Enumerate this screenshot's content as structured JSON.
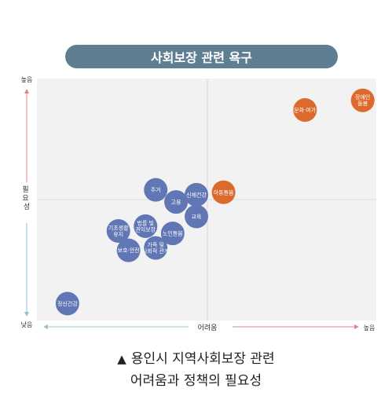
{
  "header": {
    "title": "사회보장 관련 욕구"
  },
  "caption": {
    "marker": "▲",
    "line1": "용인시 지역사회보장 관련",
    "line2": "어려움과 정책의 필요성"
  },
  "colors": {
    "plot_bg": "#f2f2f2",
    "blue_bubble": "#6176b4",
    "orange_bubble": "#dc6a2c",
    "y_arrow": "#e08585",
    "x_arrow_low": "#8fc1d3",
    "x_arrow_high": "#e08585"
  },
  "chart_data": {
    "type": "scatter",
    "title": "사회보장 관련 욕구",
    "xlabel": "어려움",
    "ylabel": "필요성",
    "x_low_label": "낮음",
    "x_high_label": "높음",
    "y_low_label": "낮음",
    "y_high_label": "높음",
    "xlim": [
      0,
      100
    ],
    "ylim": [
      0,
      100
    ],
    "center": [
      50,
      50
    ],
    "grid": "center-lines",
    "points": [
      {
        "label": "장애인\n돌봄",
        "x": 96,
        "y": 91,
        "group": "high"
      },
      {
        "label": "문화·여가",
        "x": 79,
        "y": 87,
        "group": "high"
      },
      {
        "label": "아동돌봄",
        "x": 55,
        "y": 53,
        "group": "high"
      },
      {
        "label": "신체건강",
        "x": 47,
        "y": 52,
        "group": "low"
      },
      {
        "label": "주거",
        "x": 35,
        "y": 54,
        "group": "low"
      },
      {
        "label": "고용",
        "x": 41,
        "y": 49,
        "group": "low"
      },
      {
        "label": "교육",
        "x": 47,
        "y": 43,
        "group": "low"
      },
      {
        "label": "법률 및\n권익보장",
        "x": 32,
        "y": 39,
        "group": "low"
      },
      {
        "label": "노인돌봄",
        "x": 40,
        "y": 36,
        "group": "low"
      },
      {
        "label": "기초생활\n유지",
        "x": 24,
        "y": 37,
        "group": "low"
      },
      {
        "label": "가족 및\n사회적 관계",
        "x": 35,
        "y": 30,
        "group": "low"
      },
      {
        "label": "보호·안전",
        "x": 27,
        "y": 29,
        "group": "low"
      },
      {
        "label": "정신건강",
        "x": 9,
        "y": 7,
        "group": "low"
      }
    ]
  }
}
